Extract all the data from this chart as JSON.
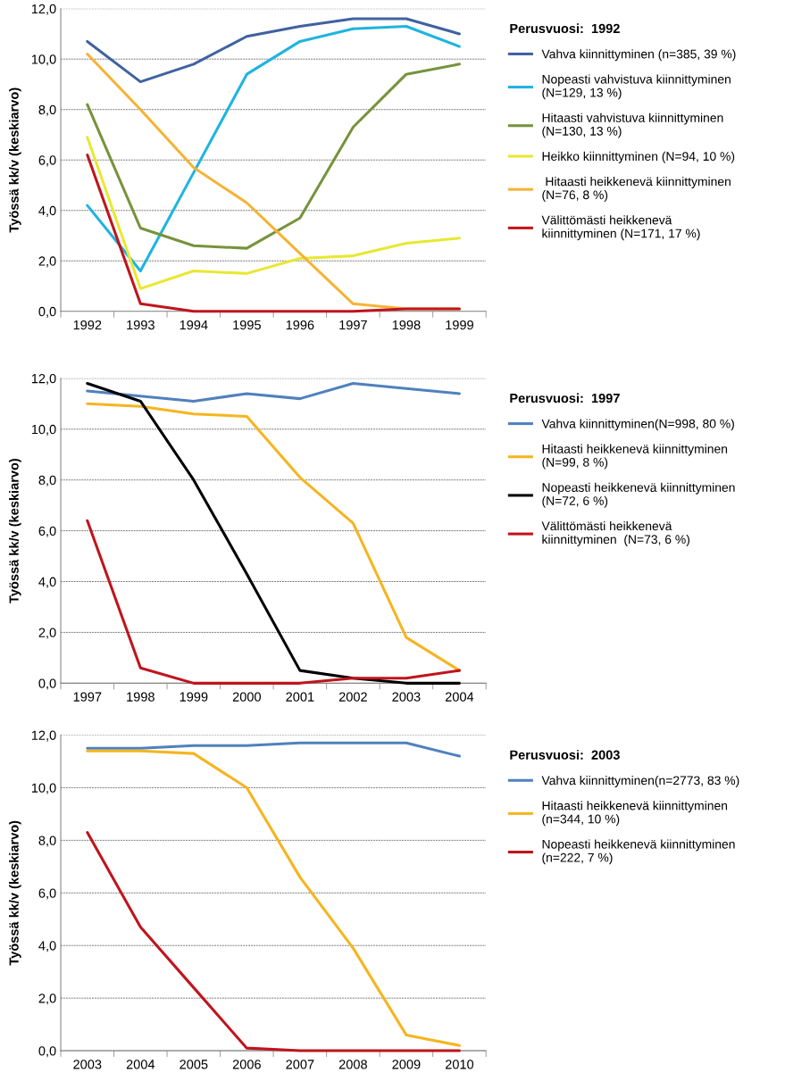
{
  "chart_data": [
    {
      "type": "line",
      "legend_title": "Perusvuosi:  1992",
      "ylabel": "Työssä kk/v (keskiarvo)",
      "categories": [
        "1992",
        "1993",
        "1994",
        "1995",
        "1996",
        "1997",
        "1998",
        "1999"
      ],
      "ylim": [
        0,
        12
      ],
      "yticks": [
        {
          "value": 0,
          "label": "0,0"
        },
        {
          "value": 2,
          "label": "2,0"
        },
        {
          "value": 4,
          "label": "4,0"
        },
        {
          "value": 6,
          "label": "6,0"
        },
        {
          "value": 8,
          "label": "8,0"
        },
        {
          "value": 10,
          "label": "10,0"
        },
        {
          "value": 12,
          "label": "12,0"
        }
      ],
      "grid": "y",
      "legend": "right",
      "marker": "none",
      "line_style": "solid",
      "series": [
        {
          "name": "Vahva kiinnittyminen (n=385, 39 %)",
          "color": "#3f62a0",
          "values": [
            10.7,
            9.1,
            9.8,
            10.9,
            11.3,
            11.6,
            11.6,
            11.0
          ]
        },
        {
          "name": "Nopeasti vahvistuva kiinnittyminen\n(N=129, 13 %)",
          "color": "#1fb4e0",
          "values": [
            4.2,
            1.6,
            5.5,
            9.4,
            10.7,
            11.2,
            11.3,
            10.5
          ]
        },
        {
          "name": "Hitaasti vahvistuva kiinnittyminen\n(N=130, 13 %)",
          "color": "#77933c",
          "values": [
            8.2,
            3.3,
            2.6,
            2.5,
            3.7,
            7.3,
            9.4,
            9.8
          ]
        },
        {
          "name": "Heikko kiinnittyminen (N=94, 10 %)",
          "color": "#e8e832",
          "values": [
            6.9,
            0.9,
            1.6,
            1.5,
            2.1,
            2.2,
            2.7,
            2.9
          ]
        },
        {
          "name": " Hitaasti heikkenevä kiinnittyminen\n(N=76, 8 %)",
          "color": "#f5b335",
          "values": [
            10.2,
            8.0,
            5.7,
            4.3,
            2.3,
            0.3,
            0.1,
            0.1
          ]
        },
        {
          "name": "Välittömästi heikkenevä\nkiinnittyminen (N=171, 17 %)",
          "color": "#c0141c",
          "values": [
            6.2,
            0.3,
            0.0,
            0.0,
            0.0,
            0.0,
            0.1,
            0.1
          ]
        }
      ]
    },
    {
      "type": "line",
      "legend_title": "Perusvuosi:  1997",
      "ylabel": "Työssä kk/v (keskiarvo)",
      "categories": [
        "1997",
        "1998",
        "1999",
        "2000",
        "2001",
        "2002",
        "2003",
        "2004"
      ],
      "ylim": [
        0,
        12
      ],
      "yticks": [
        {
          "value": 0,
          "label": "0,0"
        },
        {
          "value": 2,
          "label": "2,0"
        },
        {
          "value": 4,
          "label": "4,0"
        },
        {
          "value": 6,
          "label": "6,0"
        },
        {
          "value": 8,
          "label": "8,0"
        },
        {
          "value": 10,
          "label": "10,0"
        },
        {
          "value": 12,
          "label": "12,0"
        }
      ],
      "grid": "y",
      "legend": "right",
      "marker": "none",
      "line_style": "solid",
      "series": [
        {
          "name": "Vahva kiinnittyminen(N=998, 80 %)",
          "color": "#4f81bd",
          "values": [
            11.5,
            11.3,
            11.1,
            11.4,
            11.2,
            11.8,
            11.6,
            11.4
          ]
        },
        {
          "name": "Hitaasti heikkenevä kiinnittyminen\n(N=99, 8 %)",
          "color": "#f5b520",
          "values": [
            11.0,
            10.9,
            10.6,
            10.5,
            8.1,
            6.3,
            1.8,
            0.5
          ]
        },
        {
          "name": "Nopeasti heikkenevä kiinnittyminen\n(N=72, 6 %)",
          "color": "#000000",
          "values": [
            11.8,
            11.1,
            8.0,
            4.3,
            0.5,
            0.2,
            0.0,
            0.0
          ]
        },
        {
          "name": "Välittömästi heikkenevä\nkiinnittyminen  (N=73, 6 %)",
          "color": "#c0141c",
          "values": [
            6.4,
            0.6,
            0.0,
            0.0,
            0.0,
            0.2,
            0.2,
            0.5
          ]
        }
      ]
    },
    {
      "type": "line",
      "legend_title": "Perusvuosi:  2003",
      "ylabel": "Työssä kk/v (keskiarvo)",
      "categories": [
        "2003",
        "2004",
        "2005",
        "2006",
        "2007",
        "2008",
        "2009",
        "2010"
      ],
      "ylim": [
        0,
        12
      ],
      "yticks": [
        {
          "value": 0,
          "label": "0,0"
        },
        {
          "value": 2,
          "label": "2,0"
        },
        {
          "value": 4,
          "label": "4,0"
        },
        {
          "value": 6,
          "label": "6,0"
        },
        {
          "value": 8,
          "label": "8,0"
        },
        {
          "value": 10,
          "label": "10,0"
        },
        {
          "value": 12,
          "label": "12,0"
        }
      ],
      "grid": "y",
      "legend": "right",
      "marker": "none",
      "line_style": "solid",
      "series": [
        {
          "name": "Vahva kiinnittyminen(n=2773, 83 %)",
          "color": "#4f81bd",
          "values": [
            11.5,
            11.5,
            11.6,
            11.6,
            11.7,
            11.7,
            11.7,
            11.2
          ]
        },
        {
          "name": "Hitaasti heikkenevä kiinnittyminen\n(n=344, 10 %)",
          "color": "#f5b520",
          "values": [
            11.4,
            11.4,
            11.3,
            10.0,
            6.6,
            3.9,
            0.6,
            0.2
          ]
        },
        {
          "name": "Nopeasti heikkenevä kiinnittyminen\n(n=222, 7 %)",
          "color": "#c0141c",
          "values": [
            8.3,
            4.7,
            2.4,
            0.1,
            0.0,
            0.0,
            0.0,
            0.0
          ]
        }
      ]
    }
  ]
}
